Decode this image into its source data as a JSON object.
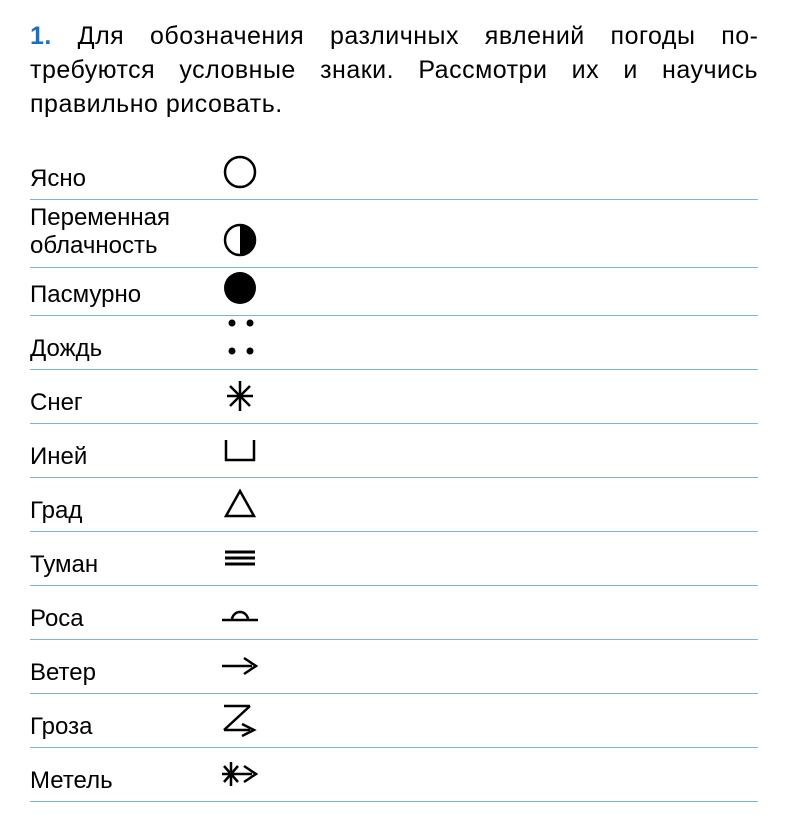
{
  "header": {
    "number": "1.",
    "text": "Для обозначения различных явлений погоды по­требуются условные знаки. Рассмотри их и научись правильно рисовать."
  },
  "styling": {
    "line_color": "#7bb3e0",
    "text_color": "#000000",
    "number_color": "#1a6fc4",
    "symbol_color": "#000000",
    "background": "#ffffff",
    "label_fontsize": 24,
    "header_fontsize": 25
  },
  "rows": [
    {
      "label": "Ясно",
      "symbol": "clear",
      "multiline": false
    },
    {
      "label": "Переменная облачность",
      "symbol": "partly-cloudy",
      "multiline": true
    },
    {
      "label": "",
      "symbol": "dots-top",
      "multiline": false
    },
    {
      "label": "Пасмурно",
      "symbol": "overcast",
      "multiline": false
    },
    {
      "label": "Дождь",
      "symbol": "rain",
      "multiline": false
    },
    {
      "label": "Снег",
      "symbol": "snow",
      "multiline": false
    },
    {
      "label": "Иней",
      "symbol": "frost",
      "multiline": false
    },
    {
      "label": "Град",
      "symbol": "hail",
      "multiline": false
    },
    {
      "label": "Туман",
      "symbol": "fog",
      "multiline": false
    },
    {
      "label": "Роса",
      "symbol": "dew",
      "multiline": false
    },
    {
      "label": "Ветер",
      "symbol": "wind",
      "multiline": false
    },
    {
      "label": "Гроза",
      "symbol": "storm",
      "multiline": false
    },
    {
      "label": "Метель",
      "symbol": "blizzard",
      "multiline": false
    }
  ]
}
